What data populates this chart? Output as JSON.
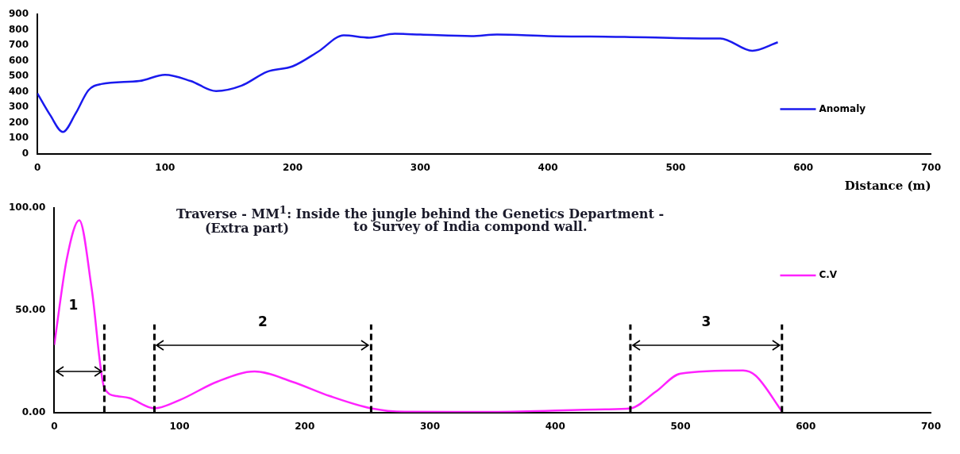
{
  "chart_data": [
    {
      "type": "line",
      "xlabel": "Distance (m)",
      "xlim": [
        0,
        700
      ],
      "xticks": [
        0,
        100,
        200,
        300,
        400,
        500,
        600,
        700
      ],
      "ylim": [
        0,
        900
      ],
      "yticks": [
        0,
        100,
        200,
        300,
        400,
        500,
        600,
        700,
        800,
        900
      ],
      "grid": false,
      "legend": "bottom right",
      "marker": "none",
      "line_style": "solid",
      "series": [
        {
          "name": "Anomaly",
          "color": "#1a1aee",
          "x": [
            0,
            10,
            20,
            30,
            40,
            50,
            80,
            100,
            120,
            140,
            160,
            180,
            200,
            220,
            240,
            260,
            280,
            300,
            340,
            360,
            400,
            460,
            520,
            535,
            560,
            580
          ],
          "values": [
            390,
            250,
            140,
            260,
            410,
            450,
            470,
            510,
            470,
            405,
            440,
            530,
            565,
            660,
            765,
            750,
            775,
            770,
            760,
            770,
            760,
            755,
            745,
            745,
            665,
            720
          ]
        }
      ]
    },
    {
      "type": "line",
      "title": "Traverse -   MM$^{1}$:  Inside the jungle behind the Genetics Department  -",
      "subtitle": "to Survey of India compond wall.",
      "xlim": [
        0,
        700
      ],
      "xticks": [
        0,
        100,
        200,
        300,
        400,
        500,
        600,
        700
      ],
      "ylim": [
        0,
        100
      ],
      "yticks": [
        {
          "value": 0,
          "label": "0.00"
        },
        {
          "value": 50,
          "label": "50.00"
        },
        {
          "value": 100,
          "label": "100.00"
        }
      ],
      "grid": false,
      "legend": "right",
      "marker": "none",
      "line_style": "solid",
      "series": [
        {
          "name": "C.V",
          "color": "#ff22ff",
          "x": [
            0,
            10,
            20,
            30,
            40,
            50,
            60,
            80,
            100,
            130,
            160,
            190,
            220,
            253,
            280,
            350,
            440,
            460,
            480,
            500,
            550,
            560,
            581
          ],
          "values": [
            33,
            75,
            94,
            60,
            12,
            8,
            7,
            2,
            6,
            15,
            20,
            15,
            8,
            2,
            0.3,
            0.2,
            1.5,
            2,
            10,
            19,
            20.5,
            18,
            0.5
          ]
        }
      ],
      "ref_lines": [
        {
          "axis": "x",
          "value": 40,
          "color": "#000000",
          "line_style": "dashed"
        },
        {
          "axis": "x",
          "value": 80,
          "color": "#000000",
          "line_style": "dashed"
        },
        {
          "axis": "x",
          "value": 253,
          "color": "#000000",
          "line_style": "dashed"
        },
        {
          "axis": "x",
          "value": 460,
          "color": "#000000",
          "line_style": "dashed"
        },
        {
          "axis": "x",
          "value": 581,
          "color": "#000000",
          "line_style": "dashed"
        }
      ],
      "annotations": [
        "(Extra part)",
        "1",
        "2",
        "3"
      ]
    }
  ]
}
